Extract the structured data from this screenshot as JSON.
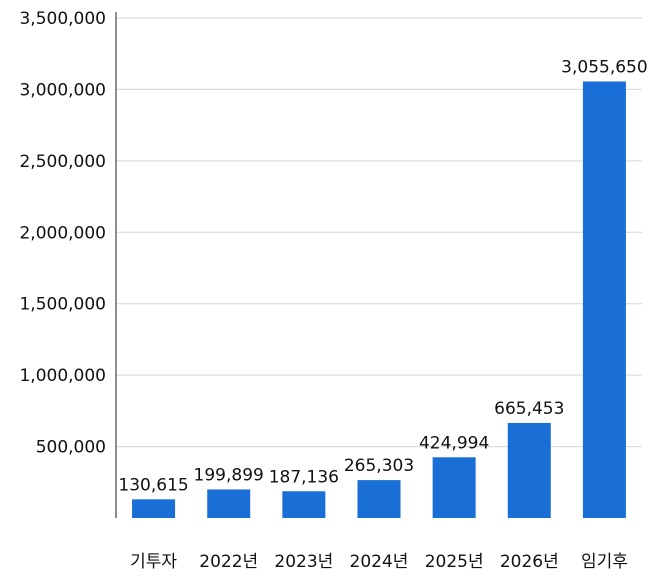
{
  "chart_data": {
    "type": "bar",
    "categories": [
      "기투자",
      "2022년",
      "2023년",
      "2024년",
      "2025년",
      "2026년",
      "임기후"
    ],
    "values": [
      130615,
      199899,
      187136,
      265303,
      424994,
      665453,
      3055650
    ],
    "value_labels": [
      "130,615",
      "199,899",
      "187,136",
      "265,303",
      "424,994",
      "665,453",
      "3,055,650"
    ],
    "y_ticks": [
      500000,
      1000000,
      1500000,
      2000000,
      2500000,
      3000000,
      3500000
    ],
    "y_tick_labels": [
      "500,000",
      "1,000,000",
      "1,500,000",
      "2,000,000",
      "2,500,000",
      "3,000,000",
      "3,500,000"
    ],
    "title": "",
    "xlabel": "",
    "ylabel": "",
    "ylim": [
      0,
      3500000
    ],
    "grid": true,
    "legend": "none",
    "colors": {
      "bar": "#1a6fd6",
      "grid": "#d6d6d6",
      "axis": "#444444",
      "text": "#111111"
    }
  }
}
